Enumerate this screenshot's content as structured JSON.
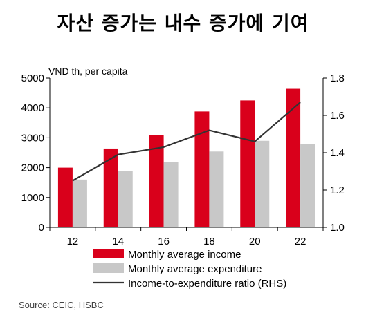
{
  "title": "자산 증가는 내수 증가에 기여",
  "source": "Source: CEIC, HSBC",
  "chart_data": {
    "type": "bar",
    "categories": [
      "12",
      "14",
      "16",
      "18",
      "20",
      "22"
    ],
    "ylabel": "VND th, per capita",
    "ylim": [
      0,
      5000
    ],
    "yticks": [
      0,
      1000,
      2000,
      3000,
      4000,
      5000
    ],
    "y2lim": [
      1.0,
      1.8
    ],
    "y2ticks": [
      "1.0",
      "1.2",
      "1.4",
      "1.6",
      "1.8"
    ],
    "grid": false,
    "legend_position": "bottom",
    "series": [
      {
        "name": "Monthly average income",
        "type": "bar",
        "axis": "left",
        "color": "#d9001b",
        "values": [
          2000,
          2640,
          3100,
          3880,
          4250,
          4640
        ]
      },
      {
        "name": "Monthly average expenditure",
        "type": "bar",
        "axis": "left",
        "color": "#c8c8c8",
        "values": [
          1600,
          1880,
          2180,
          2540,
          2900,
          2790
        ]
      },
      {
        "name": "Income-to-expenditure ratio (RHS)",
        "type": "line",
        "axis": "right",
        "color": "#333333",
        "values": [
          1.25,
          1.39,
          1.43,
          1.52,
          1.46,
          1.67
        ]
      }
    ]
  }
}
